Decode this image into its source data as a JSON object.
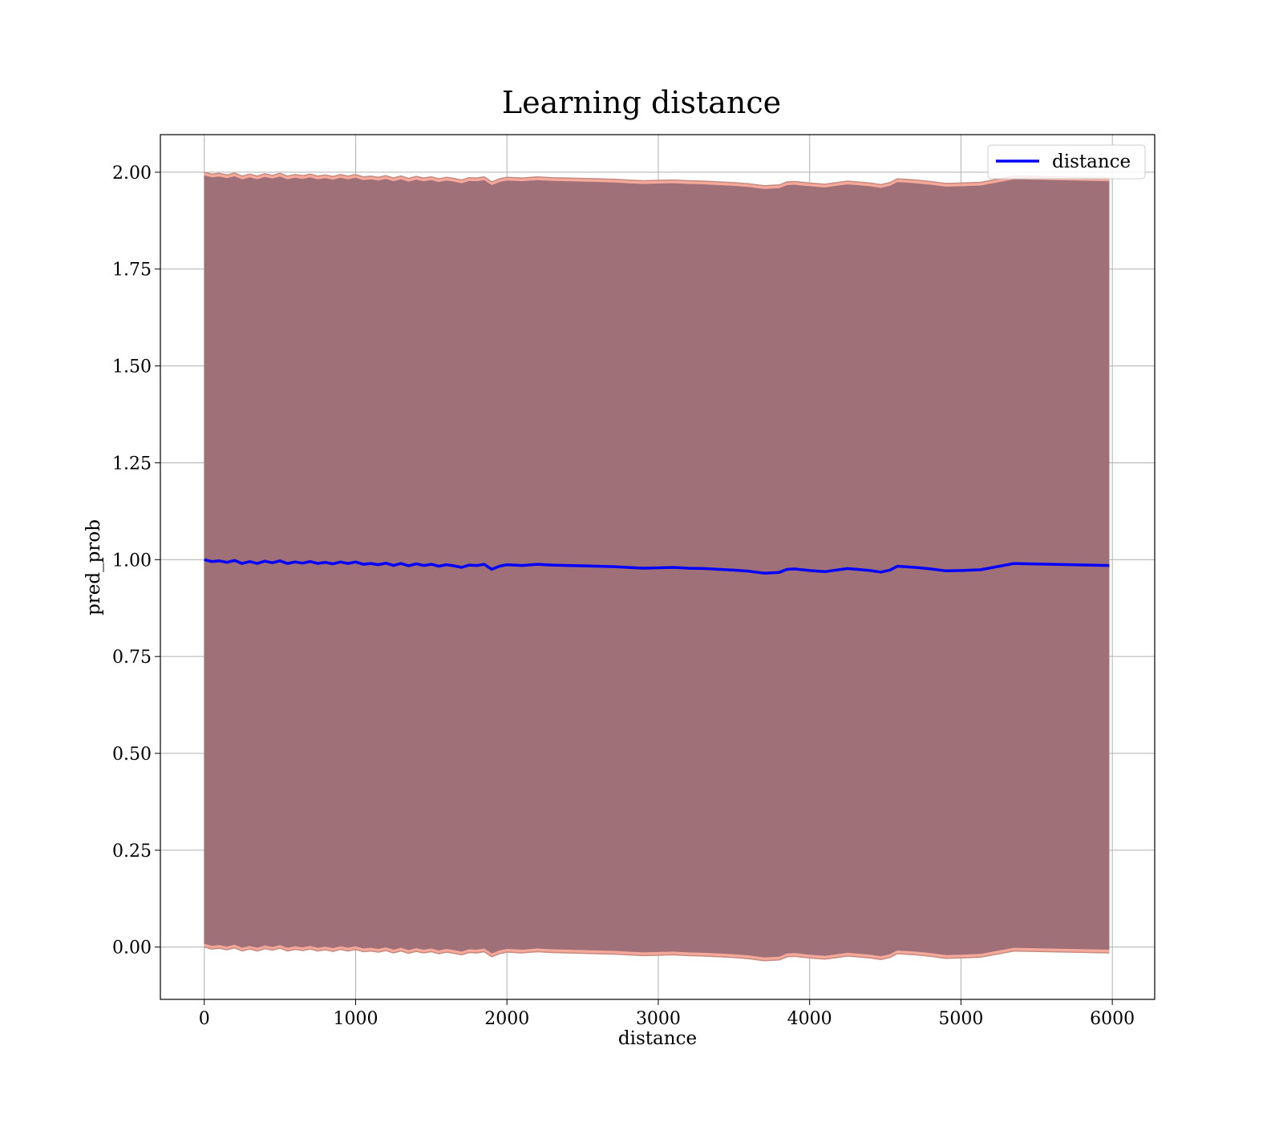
{
  "chart_data": {
    "type": "line",
    "title": "Learning distance",
    "xlabel": "distance",
    "ylabel": "pred_prob",
    "xlim": [
      -290,
      6280
    ],
    "ylim": [
      -0.135,
      2.097
    ],
    "xticks": [
      0,
      1000,
      2000,
      3000,
      4000,
      5000,
      6000
    ],
    "xtick_labels": [
      "0",
      "1000",
      "2000",
      "3000",
      "4000",
      "5000",
      "6000"
    ],
    "yticks": [
      0.0,
      0.25,
      0.5,
      0.75,
      1.0,
      1.25,
      1.5,
      1.75,
      2.0
    ],
    "ytick_labels": [
      "0.00",
      "0.25",
      "0.50",
      "0.75",
      "1.00",
      "1.25",
      "1.50",
      "1.75",
      "2.00"
    ],
    "grid": true,
    "legend_position": "top-right",
    "colors": {
      "line": "#0000ff",
      "band_fill": "#a07078",
      "band_edge": "#f4a090",
      "grid": "#b0b0b0"
    },
    "series": [
      {
        "name": "distance",
        "x": [
          0,
          50,
          100,
          150,
          200,
          250,
          300,
          350,
          400,
          450,
          500,
          550,
          600,
          650,
          700,
          750,
          800,
          850,
          900,
          950,
          1000,
          1050,
          1100,
          1150,
          1200,
          1250,
          1300,
          1350,
          1400,
          1450,
          1500,
          1550,
          1600,
          1650,
          1700,
          1750,
          1800,
          1850,
          1900,
          1950,
          2000,
          2100,
          2200,
          2300,
          2400,
          2500,
          2600,
          2700,
          2800,
          2900,
          3000,
          3100,
          3200,
          3300,
          3400,
          3500,
          3600,
          3700,
          3800,
          3850,
          3900,
          4000,
          4100,
          4250,
          4400,
          4470,
          4530,
          4580,
          4700,
          4800,
          4900,
          5000,
          5130,
          5350,
          5980
        ],
        "y": [
          1.0,
          0.995,
          0.997,
          0.993,
          0.998,
          0.99,
          0.995,
          0.99,
          0.996,
          0.992,
          0.997,
          0.99,
          0.994,
          0.991,
          0.995,
          0.99,
          0.993,
          0.989,
          0.994,
          0.99,
          0.994,
          0.988,
          0.99,
          0.987,
          0.991,
          0.985,
          0.99,
          0.984,
          0.989,
          0.985,
          0.988,
          0.983,
          0.987,
          0.984,
          0.98,
          0.986,
          0.985,
          0.988,
          0.975,
          0.983,
          0.987,
          0.985,
          0.988,
          0.986,
          0.985,
          0.984,
          0.983,
          0.982,
          0.98,
          0.978,
          0.979,
          0.98,
          0.978,
          0.977,
          0.975,
          0.973,
          0.97,
          0.965,
          0.967,
          0.975,
          0.976,
          0.972,
          0.969,
          0.977,
          0.972,
          0.968,
          0.973,
          0.983,
          0.98,
          0.976,
          0.971,
          0.972,
          0.974,
          0.99,
          0.985
        ],
        "lower": [
          0.0,
          -0.005,
          -0.003,
          -0.007,
          -0.002,
          -0.01,
          -0.005,
          -0.01,
          -0.004,
          -0.008,
          -0.003,
          -0.01,
          -0.006,
          -0.009,
          -0.005,
          -0.01,
          -0.007,
          -0.011,
          -0.006,
          -0.01,
          -0.006,
          -0.012,
          -0.01,
          -0.013,
          -0.009,
          -0.015,
          -0.01,
          -0.016,
          -0.011,
          -0.015,
          -0.012,
          -0.017,
          -0.013,
          -0.016,
          -0.02,
          -0.014,
          -0.015,
          -0.012,
          -0.025,
          -0.017,
          -0.013,
          -0.015,
          -0.012,
          -0.014,
          -0.015,
          -0.016,
          -0.017,
          -0.018,
          -0.02,
          -0.022,
          -0.021,
          -0.02,
          -0.022,
          -0.023,
          -0.025,
          -0.027,
          -0.03,
          -0.035,
          -0.033,
          -0.025,
          -0.024,
          -0.028,
          -0.031,
          -0.023,
          -0.028,
          -0.032,
          -0.027,
          -0.017,
          -0.02,
          -0.024,
          -0.029,
          -0.028,
          -0.026,
          -0.01,
          -0.015
        ],
        "upper": [
          2.0,
          1.995,
          1.997,
          1.993,
          1.998,
          1.99,
          1.995,
          1.99,
          1.996,
          1.992,
          1.997,
          1.99,
          1.994,
          1.991,
          1.995,
          1.99,
          1.993,
          1.989,
          1.994,
          1.99,
          1.994,
          1.988,
          1.99,
          1.987,
          1.991,
          1.985,
          1.99,
          1.984,
          1.989,
          1.985,
          1.988,
          1.983,
          1.987,
          1.984,
          1.98,
          1.986,
          1.985,
          1.988,
          1.975,
          1.983,
          1.987,
          1.985,
          1.988,
          1.986,
          1.985,
          1.984,
          1.983,
          1.982,
          1.98,
          1.978,
          1.979,
          1.98,
          1.978,
          1.977,
          1.975,
          1.973,
          1.97,
          1.965,
          1.967,
          1.975,
          1.976,
          1.972,
          1.969,
          1.977,
          1.972,
          1.968,
          1.973,
          1.983,
          1.98,
          1.976,
          1.971,
          1.972,
          1.974,
          1.99,
          1.985
        ]
      }
    ]
  }
}
